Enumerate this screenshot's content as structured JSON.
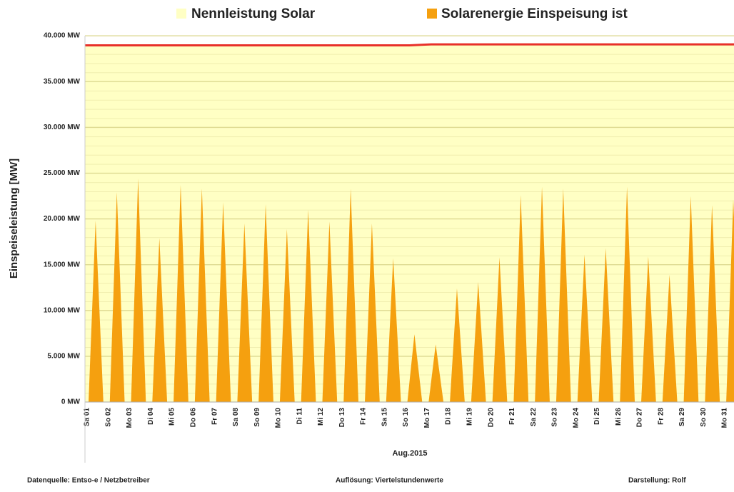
{
  "chart_data": {
    "type": "solar-area",
    "y_axis_label": "Einspeiseleistung  [MW]",
    "x_axis_label": "Aug.2015",
    "categories": [
      "Sa 01",
      "So 02",
      "Mo 03",
      "Di 04",
      "Mi 05",
      "Do 06",
      "Fr 07",
      "Sa 08",
      "So 09",
      "Mo 10",
      "Di 11",
      "Mi 12",
      "Do 13",
      "Fr 14",
      "Sa 15",
      "So 16",
      "Mo 17",
      "Di 18",
      "Mi 19",
      "Do 20",
      "Fr 21",
      "Sa 22",
      "So 23",
      "Mo 24",
      "Di 25",
      "Mi 26",
      "Do 27",
      "Fr 28",
      "Sa 29",
      "So 30",
      "Mo 31"
    ],
    "series": [
      {
        "name": "Nennleistung Solar",
        "color": "#ffffc4",
        "line_color": "#e8302a",
        "values": [
          38950,
          38950,
          38950,
          38950,
          38950,
          38950,
          38950,
          38950,
          38950,
          38950,
          38950,
          38950,
          38950,
          38950,
          38950,
          38950,
          39050,
          39050,
          39050,
          39050,
          39050,
          39050,
          39050,
          39050,
          39050,
          39050,
          39050,
          39050,
          39050,
          39050,
          39050
        ]
      },
      {
        "name": "Solarenergie Einspeisung ist",
        "color": "#f5a00f",
        "values": [
          19800,
          22900,
          24400,
          17900,
          23700,
          23300,
          21800,
          19500,
          21600,
          18900,
          21000,
          19700,
          23300,
          19500,
          15700,
          7400,
          6300,
          12400,
          13100,
          15800,
          22600,
          23500,
          23300,
          16100,
          16800,
          23500,
          15900,
          13900,
          22500,
          21500,
          22100
        ]
      }
    ],
    "ylim": [
      0,
      40000
    ],
    "yticks": [
      {
        "value": 0,
        "label": "0 MW"
      },
      {
        "value": 5000,
        "label": "5.000 MW"
      },
      {
        "value": 10000,
        "label": "10.000 MW"
      },
      {
        "value": 15000,
        "label": "15.000 MW"
      },
      {
        "value": 20000,
        "label": "20.000 MW"
      },
      {
        "value": 25000,
        "label": "25.000 MW"
      },
      {
        "value": 30000,
        "label": "30.000 MW"
      },
      {
        "value": 35000,
        "label": "35.000 MW"
      },
      {
        "value": 40000,
        "label": "40.000 MW"
      }
    ],
    "grid": true,
    "footer": [
      "Datenquelle: Entso-e  / Netzbetreiber",
      "Auflösung: Viertelstundenwerte",
      "Darstellung: Rolf"
    ]
  }
}
